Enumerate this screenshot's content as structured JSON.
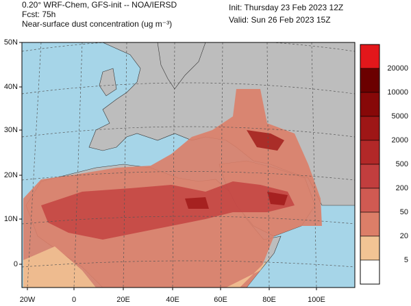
{
  "header": {
    "model": "0.20° WRF-Chem, GFS-init -- NOA/IERSD",
    "forecast": "Fcst: 75h",
    "field": "Near-surface dust concentration (ug m⁻³)",
    "init": "Init: Thursday 23 Feb 2023  12Z",
    "valid": "Valid: Sun 26 Feb 2023  15Z"
  },
  "axes": {
    "lat_labels": [
      "50N",
      "40N",
      "30N",
      "20N",
      "10N",
      "0"
    ],
    "lon_labels": [
      "20W",
      "0",
      "20E",
      "40E",
      "60E",
      "80E",
      "100E"
    ]
  },
  "colorbar": {
    "levels": [
      20000,
      10000,
      5000,
      2000,
      500,
      200,
      50,
      20,
      5
    ],
    "colors": [
      "#e3171b",
      "#6b0000",
      "#870808",
      "#9e1616",
      "#b22828",
      "#c23e3e",
      "#d05a52",
      "#dc7e68",
      "#f2c494",
      "#ffffff"
    ]
  }
}
